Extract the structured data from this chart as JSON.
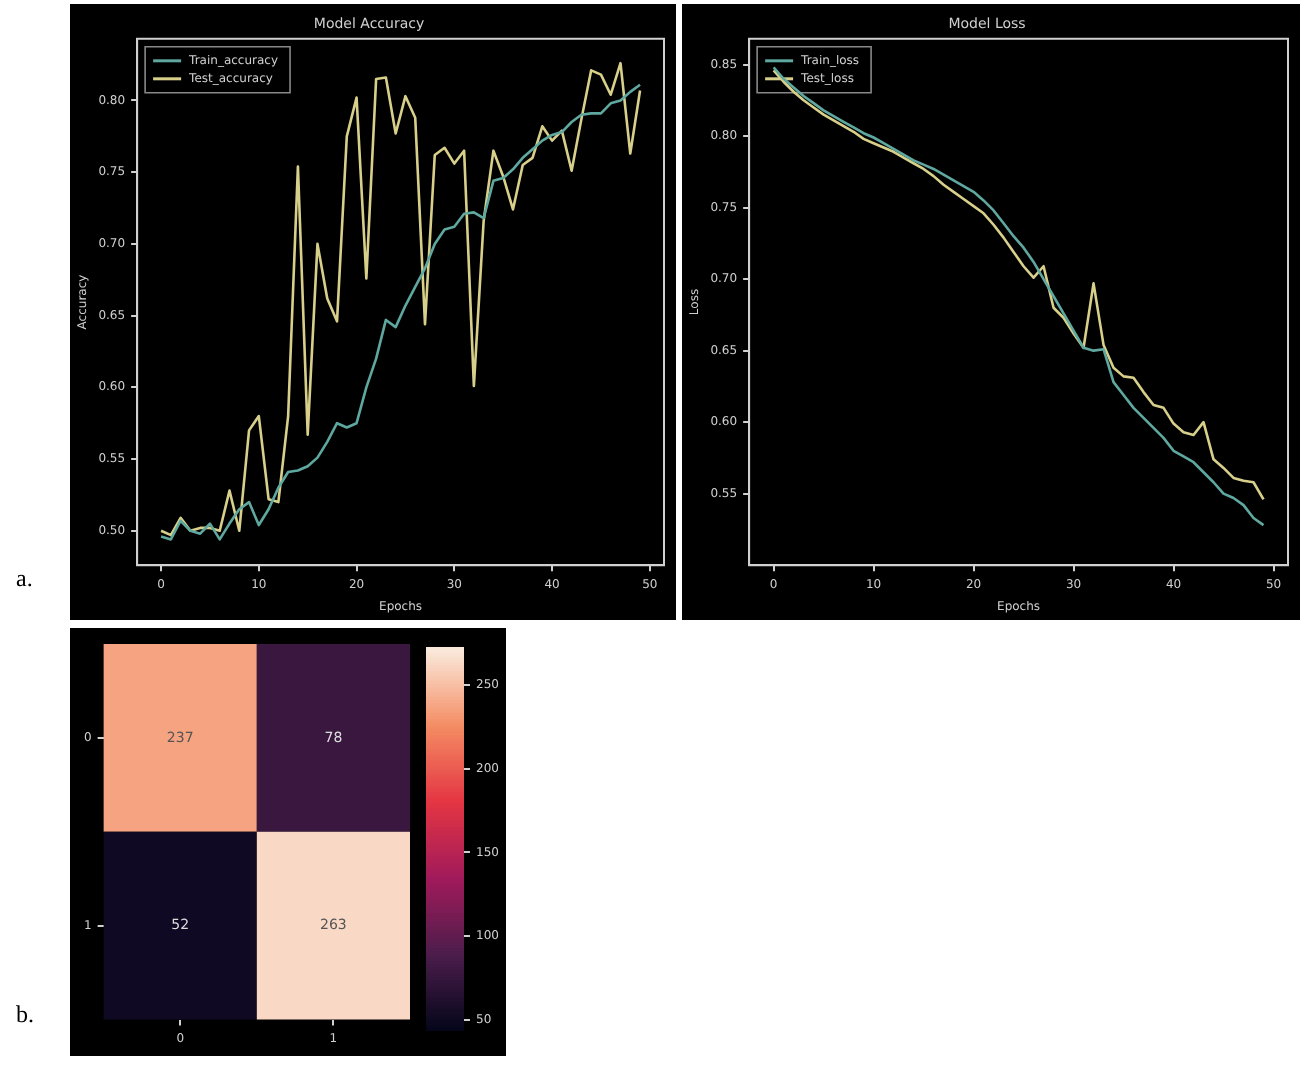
{
  "chart_data": [
    {
      "type": "line",
      "title": "Model Accuracy",
      "xlabel": "Epochs",
      "ylabel": "Accuracy",
      "legend": "top left",
      "annotations": [
        "a."
      ],
      "x": [
        0,
        1,
        2,
        3,
        4,
        5,
        6,
        7,
        8,
        9,
        10,
        11,
        12,
        13,
        14,
        15,
        16,
        17,
        18,
        19,
        20,
        21,
        22,
        23,
        24,
        25,
        26,
        27,
        28,
        29,
        30,
        31,
        32,
        33,
        34,
        35,
        36,
        37,
        38,
        39,
        40,
        41,
        42,
        43,
        44,
        45,
        46,
        47,
        48,
        49
      ],
      "xlim": [
        -2.45,
        51.45
      ],
      "xticks": [
        0,
        10,
        20,
        30,
        40,
        50
      ],
      "ylim": [
        0.476,
        0.843
      ],
      "yticks": [
        {
          "value": 0.5,
          "label": "0.50"
        },
        {
          "value": 0.55,
          "label": "0.55"
        },
        {
          "value": 0.6,
          "label": "0.60"
        },
        {
          "value": 0.65,
          "label": "0.65"
        },
        {
          "value": 0.7,
          "label": "0.70"
        },
        {
          "value": 0.75,
          "label": "0.75"
        },
        {
          "value": 0.8,
          "label": "0.80"
        }
      ],
      "series": [
        {
          "name": "Train_accuracy",
          "color": "#5fa8a0",
          "values": [
            0.496,
            0.494,
            0.507,
            0.5,
            0.498,
            0.505,
            0.494,
            0.505,
            0.515,
            0.52,
            0.504,
            0.515,
            0.53,
            0.541,
            0.542,
            0.545,
            0.551,
            0.562,
            0.575,
            0.572,
            0.575,
            0.6,
            0.62,
            0.647,
            0.642,
            0.657,
            0.67,
            0.683,
            0.7,
            0.71,
            0.712,
            0.721,
            0.722,
            0.718,
            0.744,
            0.746,
            0.752,
            0.76,
            0.766,
            0.772,
            0.776,
            0.778,
            0.785,
            0.79,
            0.791,
            0.791,
            0.798,
            0.8,
            0.806,
            0.811
          ]
        },
        {
          "name": "Test_accuracy",
          "color": "#d8d08a",
          "values": [
            0.5,
            0.497,
            0.509,
            0.5,
            0.502,
            0.502,
            0.5,
            0.528,
            0.5,
            0.57,
            0.58,
            0.522,
            0.52,
            0.58,
            0.754,
            0.567,
            0.7,
            0.662,
            0.646,
            0.775,
            0.802,
            0.676,
            0.815,
            0.816,
            0.777,
            0.803,
            0.788,
            0.644,
            0.762,
            0.767,
            0.756,
            0.765,
            0.601,
            0.716,
            0.765,
            0.747,
            0.724,
            0.755,
            0.76,
            0.782,
            0.772,
            0.779,
            0.751,
            0.787,
            0.821,
            0.818,
            0.804,
            0.826,
            0.763,
            0.807
          ]
        }
      ]
    },
    {
      "type": "line",
      "title": "Model Loss",
      "xlabel": "Epochs",
      "ylabel": "Loss",
      "legend": "top left",
      "x": [
        0,
        1,
        2,
        3,
        4,
        5,
        6,
        7,
        8,
        9,
        10,
        11,
        12,
        13,
        14,
        15,
        16,
        17,
        18,
        19,
        20,
        21,
        22,
        23,
        24,
        25,
        26,
        27,
        28,
        29,
        30,
        31,
        32,
        33,
        34,
        35,
        36,
        37,
        38,
        39,
        40,
        41,
        42,
        43,
        44,
        45,
        46,
        47,
        48,
        49
      ],
      "xlim": [
        -2.45,
        51.45
      ],
      "xticks": [
        0,
        10,
        20,
        30,
        40,
        50
      ],
      "ylim": [
        0.5,
        0.868
      ],
      "yticks": [
        {
          "value": 0.55,
          "label": "0.55"
        },
        {
          "value": 0.6,
          "label": "0.60"
        },
        {
          "value": 0.65,
          "label": "0.65"
        },
        {
          "value": 0.7,
          "label": "0.70"
        },
        {
          "value": 0.75,
          "label": "0.75"
        },
        {
          "value": 0.8,
          "label": "0.80"
        },
        {
          "value": 0.85,
          "label": "0.85"
        }
      ],
      "series": [
        {
          "name": "Train_loss",
          "color": "#5fa8a0",
          "values": [
            0.848,
            0.84,
            0.834,
            0.828,
            0.823,
            0.818,
            0.814,
            0.81,
            0.806,
            0.802,
            0.799,
            0.795,
            0.791,
            0.787,
            0.783,
            0.78,
            0.777,
            0.773,
            0.769,
            0.765,
            0.761,
            0.755,
            0.748,
            0.739,
            0.73,
            0.722,
            0.712,
            0.7,
            0.688,
            0.676,
            0.664,
            0.652,
            0.65,
            0.651,
            0.628,
            0.619,
            0.61,
            0.603,
            0.596,
            0.589,
            0.58,
            0.576,
            0.572,
            0.565,
            0.558,
            0.55,
            0.547,
            0.542,
            0.533,
            0.528
          ]
        },
        {
          "name": "Test_loss",
          "color": "#d8d08a",
          "values": [
            0.846,
            0.838,
            0.831,
            0.825,
            0.82,
            0.815,
            0.811,
            0.807,
            0.803,
            0.798,
            0.795,
            0.792,
            0.789,
            0.785,
            0.781,
            0.777,
            0.772,
            0.766,
            0.761,
            0.756,
            0.751,
            0.746,
            0.738,
            0.729,
            0.719,
            0.709,
            0.701,
            0.709,
            0.68,
            0.673,
            0.662,
            0.652,
            0.697,
            0.654,
            0.638,
            0.632,
            0.631,
            0.621,
            0.612,
            0.61,
            0.599,
            0.593,
            0.591,
            0.6,
            0.574,
            0.568,
            0.561,
            0.559,
            0.558,
            0.546
          ]
        }
      ]
    },
    {
      "type": "heatmap",
      "annotations": [
        "b."
      ],
      "categories": [
        "0",
        "1"
      ],
      "y_categories": [
        "0",
        "1"
      ],
      "cells": [
        [
          237,
          78
        ],
        [
          52,
          263
        ]
      ],
      "data_labels": true,
      "clim": [
        44,
        272
      ],
      "cticks": [
        50,
        100,
        150,
        200,
        250
      ]
    }
  ]
}
